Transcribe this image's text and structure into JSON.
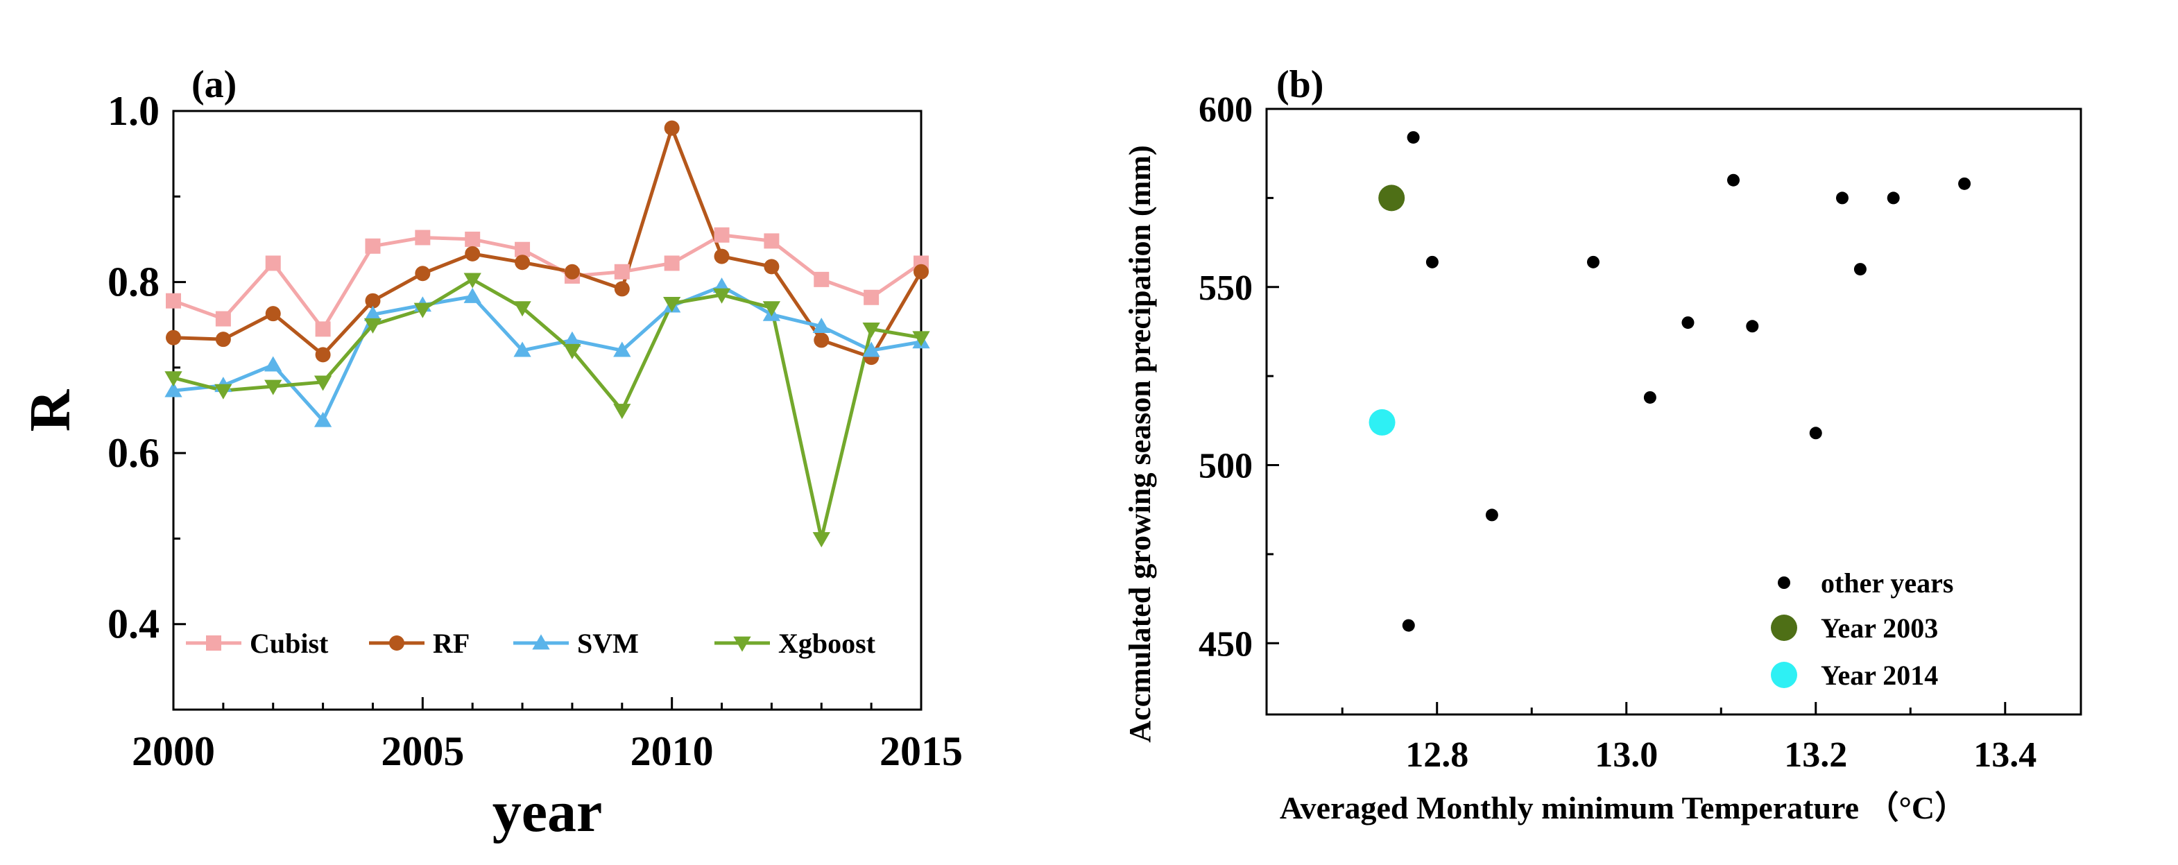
{
  "chart_data": [
    {
      "panel_label": "(a)",
      "type": "line",
      "xlabel": "year",
      "ylabel": "R",
      "xlim": [
        2000,
        2015
      ],
      "ylim": [
        0.3,
        1.0
      ],
      "xticks": [
        2000,
        2005,
        2010,
        2015
      ],
      "xtick_labels": [
        "2000",
        "2005",
        "2010",
        "2015"
      ],
      "yticks": [
        0.4,
        0.6,
        0.8,
        1.0
      ],
      "ytick_labels": [
        "0.4",
        "0.6",
        "0.8",
        "1.0"
      ],
      "x": [
        2000,
        2001,
        2002,
        2003,
        2004,
        2005,
        2006,
        2007,
        2008,
        2009,
        2010,
        2011,
        2012,
        2013,
        2014,
        2015
      ],
      "legend_position": "bottom",
      "series": [
        {
          "name": "Cubist",
          "color": "#f4a7a9",
          "marker": "square",
          "values": [
            0.778,
            0.757,
            0.822,
            0.745,
            0.842,
            0.852,
            0.85,
            0.838,
            0.807,
            0.812,
            0.822,
            0.855,
            0.848,
            0.803,
            0.782,
            0.822
          ]
        },
        {
          "name": "RF",
          "color": "#b5571b",
          "marker": "circle",
          "values": [
            0.735,
            0.733,
            0.763,
            0.715,
            0.778,
            0.81,
            0.833,
            0.823,
            0.812,
            0.792,
            0.98,
            0.83,
            0.818,
            0.732,
            0.712,
            0.812
          ]
        },
        {
          "name": "SVM",
          "color": "#5ab4ea",
          "marker": "triangle-up",
          "values": [
            0.673,
            0.679,
            0.703,
            0.638,
            0.762,
            0.773,
            0.783,
            0.72,
            0.732,
            0.72,
            0.772,
            0.795,
            0.762,
            0.748,
            0.72,
            0.73
          ]
        },
        {
          "name": "Xgboost",
          "color": "#73a82c",
          "marker": "triangle-down",
          "values": [
            0.688,
            0.673,
            0.678,
            0.683,
            0.75,
            0.768,
            0.803,
            0.77,
            0.72,
            0.65,
            0.775,
            0.785,
            0.77,
            0.5,
            0.745,
            0.735
          ]
        }
      ]
    },
    {
      "panel_label": "(b)",
      "type": "scatter",
      "xlabel": "Averaged Monthly minimum Temperature （°C）",
      "ylabel": "Accmulated growing season precipation (mm)",
      "xlim": [
        12.62,
        13.48
      ],
      "ylim": [
        430,
        600
      ],
      "xticks": [
        12.8,
        13.0,
        13.2,
        13.4
      ],
      "xtick_labels": [
        "12.8",
        "13.0",
        "13.2",
        "13.4"
      ],
      "yticks": [
        450,
        500,
        550,
        600
      ],
      "ytick_labels": [
        "450",
        "500",
        "550",
        "600"
      ],
      "legend_position": "bottom-right",
      "series": [
        {
          "name": "other years",
          "color": "#000000",
          "size": "small",
          "points": [
            [
              12.775,
              592
            ],
            [
              12.795,
              557
            ],
            [
              12.858,
              486
            ],
            [
              12.77,
              455
            ],
            [
              12.965,
              557
            ],
            [
              13.025,
              519
            ],
            [
              13.065,
              540
            ],
            [
              13.113,
              580
            ],
            [
              13.133,
              539
            ],
            [
              13.2,
              509
            ],
            [
              13.228,
              575
            ],
            [
              13.247,
              555
            ],
            [
              13.282,
              575
            ],
            [
              13.357,
              579
            ]
          ]
        },
        {
          "name": "Year 2003",
          "color": "#4e6f16",
          "size": "large",
          "points": [
            [
              12.752,
              575
            ]
          ]
        },
        {
          "name": "Year 2014",
          "color": "#2ef0f4",
          "size": "large",
          "points": [
            [
              12.742,
              512
            ]
          ]
        }
      ]
    }
  ]
}
